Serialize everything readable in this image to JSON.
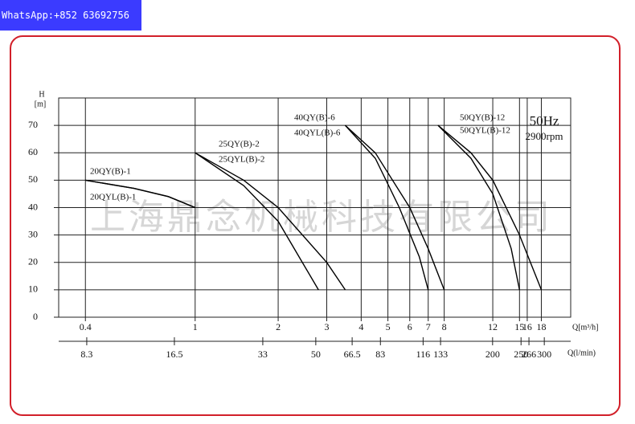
{
  "header": {
    "contact": "WhatsApp:+852 63692756"
  },
  "watermark": "上海鼎念机械科技有限公司",
  "chart_data": {
    "type": "line",
    "y_label": "H",
    "y_unit": "[m]",
    "x_label": "Q[m³/h]",
    "x2_label": "Q(l/min)",
    "annotations": [
      "50Hz",
      "2900rpm"
    ],
    "log_x": true,
    "grid": true,
    "xlim": [
      0.32,
      23
    ],
    "xticks": [
      0.4,
      1,
      2,
      3,
      4,
      5,
      6,
      7,
      8,
      12,
      15,
      16,
      18
    ],
    "x2lim": [
      6.66,
      369
    ],
    "x2ticks": [
      8.3,
      16.5,
      33,
      50,
      66.5,
      83,
      116,
      133,
      200,
      250,
      266,
      300
    ],
    "ylim": [
      0,
      80
    ],
    "yticks": [
      0,
      10,
      20,
      30,
      40,
      50,
      60,
      70
    ],
    "series": [
      {
        "name": "20QY(B)-1",
        "color": "#000000",
        "x": [
          0.4,
          0.6,
          0.8,
          1
        ],
        "values": [
          50,
          47,
          44,
          40
        ]
      },
      {
        "name": "20QYL(B)-1",
        "color": "#000000",
        "x": [
          0.4,
          0.6,
          0.8,
          1
        ],
        "values": [
          50,
          47,
          44,
          40
        ]
      },
      {
        "name": "25QY(B)-2",
        "color": "#000000",
        "x": [
          1,
          1.5,
          2,
          3,
          3.5
        ],
        "values": [
          60,
          50,
          40,
          20,
          10
        ]
      },
      {
        "name": "25QYL(B)-2",
        "color": "#000000",
        "x": [
          1,
          1.5,
          2,
          2.8
        ],
        "values": [
          60,
          48,
          35,
          10
        ]
      },
      {
        "name": "40QY(B)-6",
        "color": "#000000",
        "x": [
          3.5,
          4.5,
          6,
          7,
          8
        ],
        "values": [
          70,
          60,
          40,
          25,
          10
        ]
      },
      {
        "name": "40QYL(B)-6",
        "color": "#000000",
        "x": [
          3.5,
          4.5,
          5.5,
          6.5,
          7
        ],
        "values": [
          70,
          58,
          40,
          22,
          10
        ]
      },
      {
        "name": "50QY(B)-12",
        "color": "#000000",
        "x": [
          7.6,
          10,
          12,
          15,
          18
        ],
        "values": [
          70,
          60,
          50,
          30,
          10
        ]
      },
      {
        "name": "50QYL(B)-12",
        "color": "#000000",
        "x": [
          7.6,
          10,
          12,
          14,
          15
        ],
        "values": [
          70,
          58,
          45,
          25,
          10
        ]
      }
    ]
  }
}
